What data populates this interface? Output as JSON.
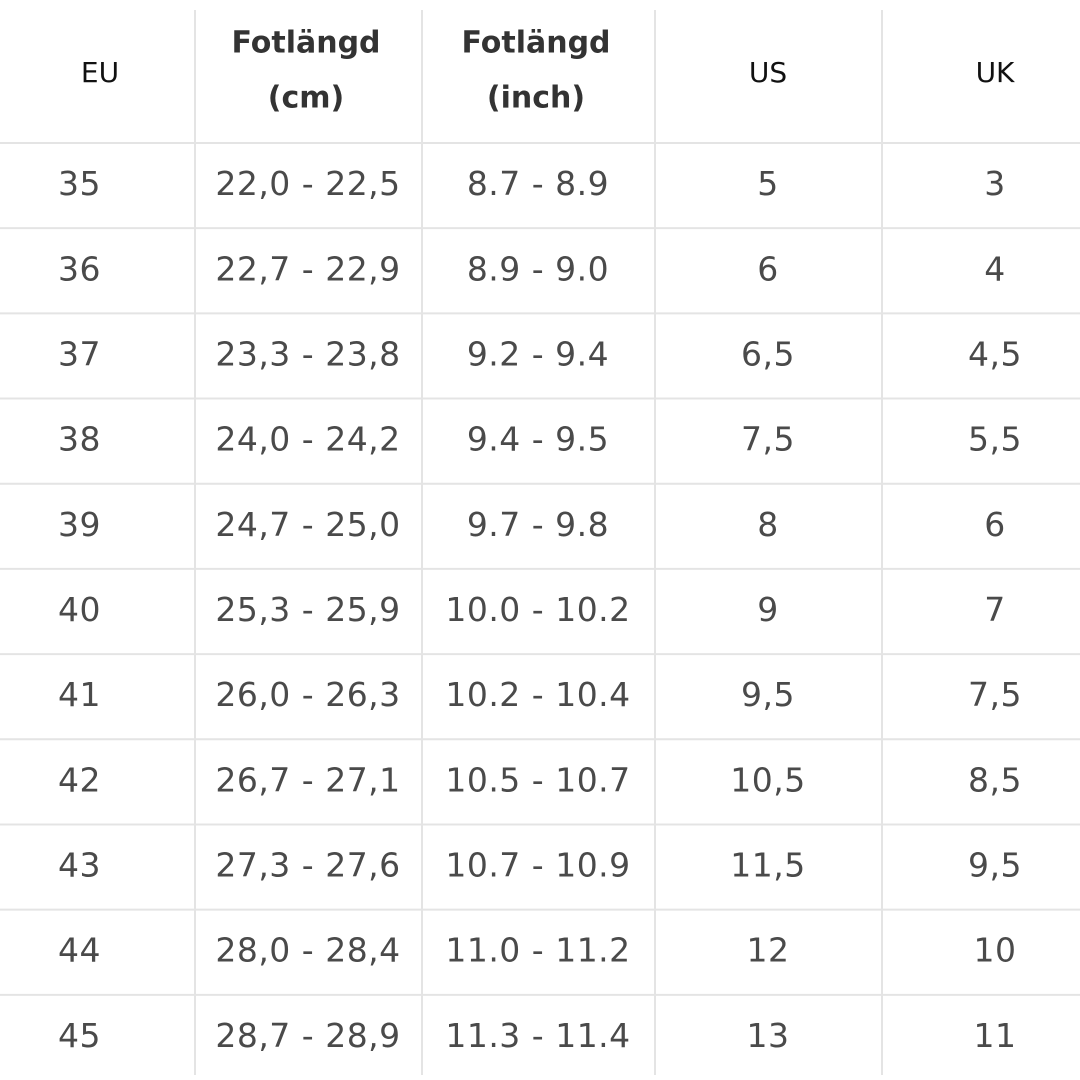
{
  "table": {
    "headers": [
      [
        "EU"
      ],
      [
        "Fotlängd",
        "(cm)"
      ],
      [
        "Fotlängd",
        "(inch)"
      ],
      [
        "US"
      ],
      [
        "UK"
      ]
    ],
    "rows": [
      [
        "35",
        "22,0 - 22,5",
        "8.7 - 8.9",
        "5",
        "3"
      ],
      [
        "36",
        "22,7 - 22,9",
        "8.9 - 9.0",
        "6",
        "4"
      ],
      [
        "37",
        "23,3 - 23,8",
        "9.2 - 9.4",
        "6,5",
        "4,5"
      ],
      [
        "38",
        "24,0 - 24,2",
        "9.4 - 9.5",
        "7,5",
        "5,5"
      ],
      [
        "39",
        "24,7 - 25,0",
        "9.7 - 9.8",
        "8",
        "6"
      ],
      [
        "40",
        "25,3 - 25,9",
        "10.0 - 10.2",
        "9",
        "7"
      ],
      [
        "41",
        "26,0 - 26,3",
        "10.2 - 10.4",
        "9,5",
        "7,5"
      ],
      [
        "42",
        "26,7 - 27,1",
        "10.5 - 10.7",
        "10,5",
        "8,5"
      ],
      [
        "43",
        "27,3 - 27,6",
        "10.7 - 10.9",
        "11,5",
        "9,5"
      ],
      [
        "44",
        "28,0 - 28,4",
        "11.0 - 11.2",
        "12",
        "10"
      ],
      [
        "45",
        "28,7 - 28,9",
        "11.3 - 11.4",
        "13",
        "11"
      ]
    ]
  }
}
